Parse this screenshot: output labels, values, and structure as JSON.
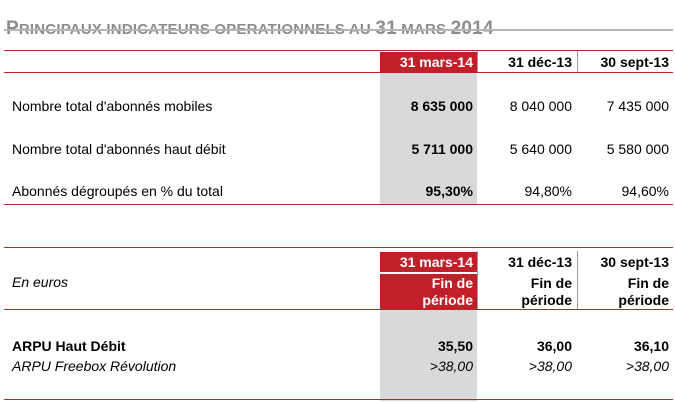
{
  "title": {
    "cap1": "P",
    "rest1": "RINCIPAUX INDICATEURS OPERATIONNELS AU ",
    "cap2": "31",
    "rest2": " MARS ",
    "cap3": "2014"
  },
  "table1": {
    "headers": [
      "31 mars-14",
      "31 déc-13",
      "30 sept-13"
    ],
    "rows": [
      {
        "label": "Nombre total d'abonnés mobiles",
        "values": [
          "8 635 000",
          "8 040 000",
          "7 435 000"
        ]
      },
      {
        "label": "Nombre total d'abonnés haut débit",
        "values": [
          "5 711 000",
          "5 640 000",
          "5 580 000"
        ]
      },
      {
        "label": "Abonnés dégroupés en % du total",
        "values": [
          "95,30%",
          "94,80%",
          "94,60%"
        ]
      }
    ]
  },
  "table2": {
    "headers": [
      "31 mars-14",
      "31 déc-13",
      "30 sept-13"
    ],
    "unit_label": "En euros",
    "sub_header_line1": "Fin de",
    "sub_header_line2": "période",
    "rows": [
      {
        "label": "ARPU Haut Débit",
        "values": [
          "35,50",
          "36,00",
          "36,10"
        ]
      },
      {
        "label": "ARPU Freebox Révolution",
        "values": [
          ">38,00",
          ">38,00",
          ">38,00"
        ]
      }
    ]
  },
  "colors": {
    "accent_red": "#c0202a",
    "highlight_gray": "#d9d9d9",
    "title_gray": "#8c8c8c"
  }
}
